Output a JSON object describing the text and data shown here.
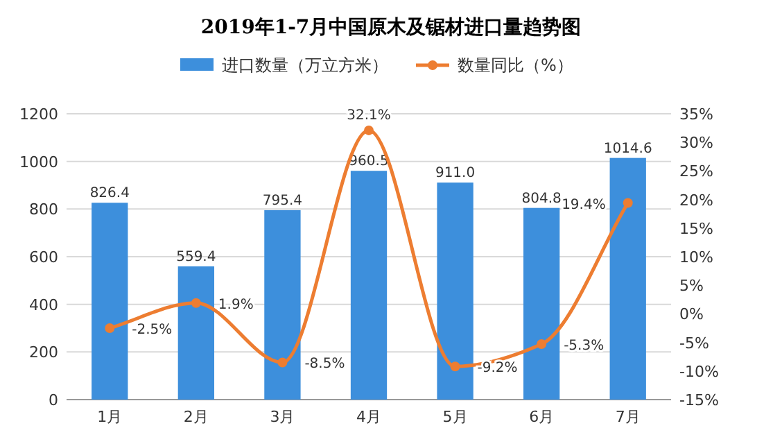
{
  "chart_data": {
    "type": "bar",
    "title": "2019年1-7月中国原木及锯材进口量趋势图",
    "categories": [
      "1月",
      "2月",
      "3月",
      "4月",
      "5月",
      "6月",
      "7月"
    ],
    "series": [
      {
        "name": "进口数量（万立方米）",
        "color": "#3d8fdc",
        "values": [
          826.4,
          559.4,
          795.4,
          960.5,
          911.0,
          804.8,
          1014.6
        ],
        "value_labels": [
          "826.4",
          "559.4",
          "795.4",
          "960.5",
          "911.0",
          "804.8",
          "1014.6"
        ]
      },
      {
        "name": "数量同比（%）",
        "type": "line",
        "axis": "y2",
        "color": "#ed7d31",
        "marker": "circle",
        "values": [
          -2.5,
          1.9,
          -8.5,
          32.1,
          -9.2,
          -5.3,
          19.4
        ],
        "value_labels": [
          "-2.5%",
          "1.9%",
          "-8.5%",
          "32.1%",
          "-9.2%",
          "-5.3%",
          "19.4%"
        ]
      }
    ],
    "ylim": [
      0,
      1200
    ],
    "yticks": [
      0,
      200,
      400,
      600,
      800,
      1000,
      1200
    ],
    "y2lim": [
      -15,
      35
    ],
    "y2ticks": [
      {
        "value": -15,
        "label": "-15%"
      },
      {
        "value": -10,
        "label": "-10%"
      },
      {
        "value": -5,
        "label": "-5%"
      },
      {
        "value": 0,
        "label": "0%"
      },
      {
        "value": 5,
        "label": "5%"
      },
      {
        "value": 10,
        "label": "10%"
      },
      {
        "value": 15,
        "label": "15%"
      },
      {
        "value": 20,
        "label": "20%"
      },
      {
        "value": 25,
        "label": "25%"
      },
      {
        "value": 30,
        "label": "30%"
      },
      {
        "value": 35,
        "label": "35%"
      }
    ],
    "grid": "y",
    "legend": "top"
  }
}
